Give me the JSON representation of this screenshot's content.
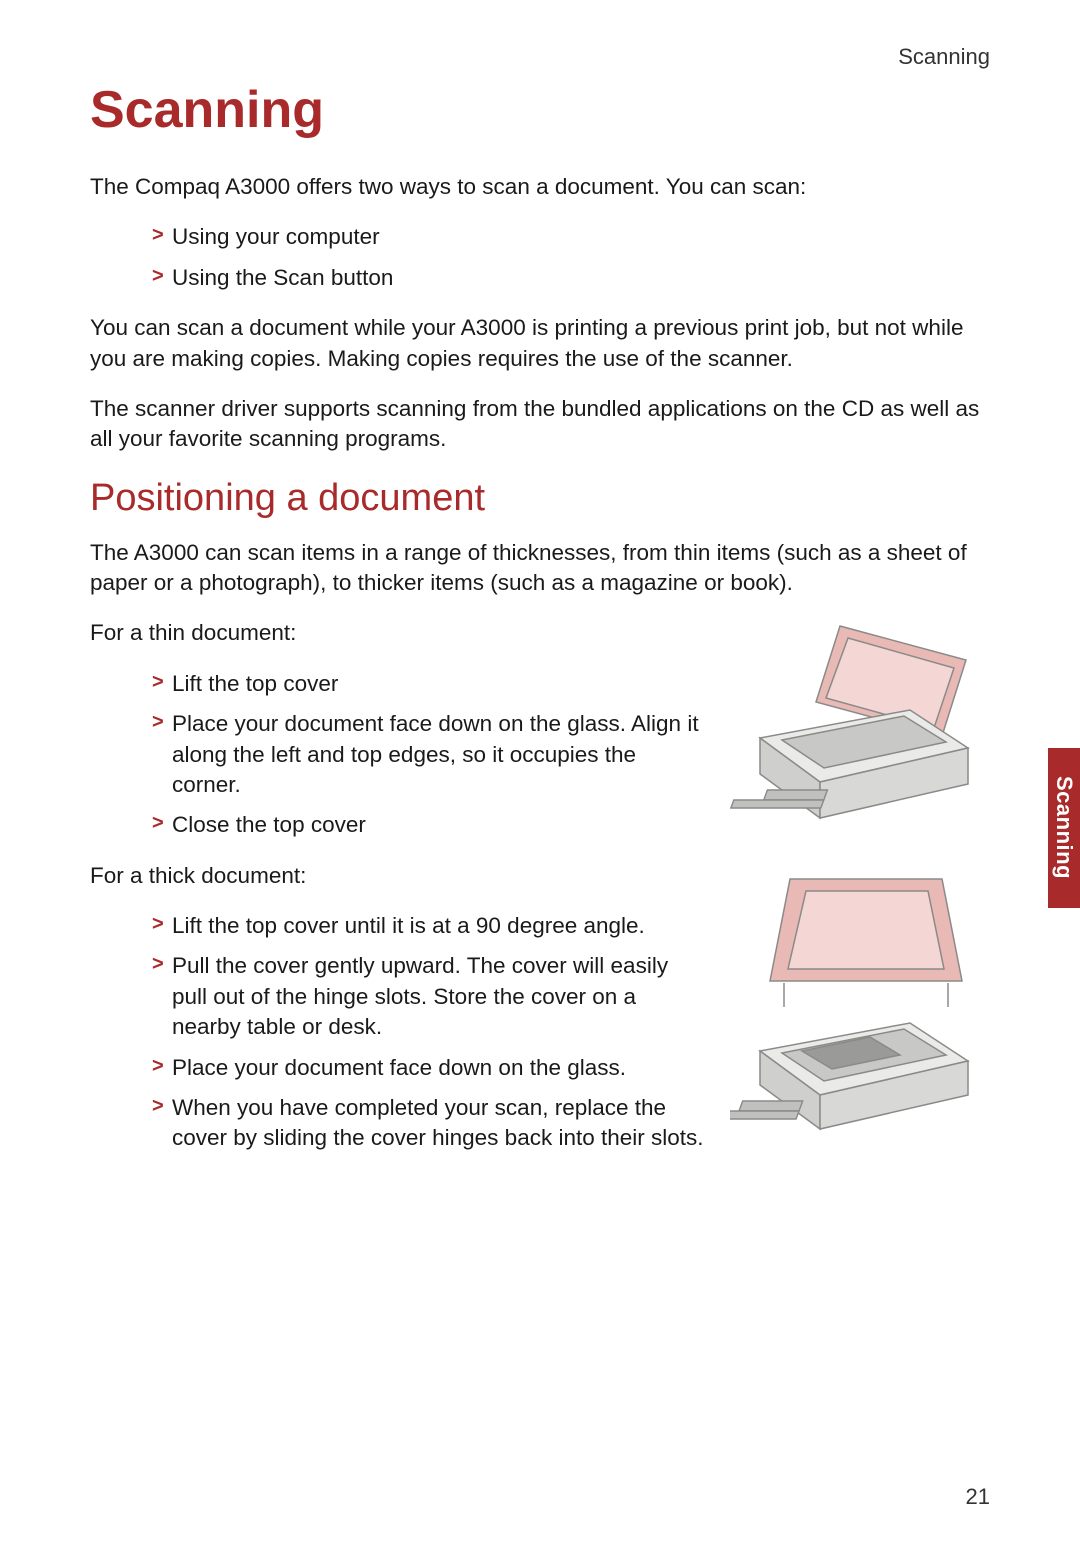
{
  "colors": {
    "accent": "#a82a2a",
    "text": "#1a1a1a",
    "bullet": "#a82a2a",
    "background": "#ffffff"
  },
  "header": {
    "label": "Scanning"
  },
  "title": "Scanning",
  "intro": "The Compaq A3000 offers two ways to scan a document. You can scan:",
  "intro_list": [
    "Using your computer",
    "Using the Scan button"
  ],
  "para2": "You can scan a document while your A3000 is printing a previous print job, but not while you are making copies. Making copies requires the use of the scanner.",
  "para3": "The scanner driver supports scanning from the bundled applications on the CD as well as all your favorite scanning programs.",
  "section2": {
    "heading": "Positioning a document",
    "intro": "The A3000 can scan items in a range of thicknesses, from thin items (such as a sheet of paper or a photograph), to thicker items (such as a magazine or book).",
    "thin_label": "For a thin document:",
    "thin_list": [
      "Lift the top cover",
      "Place your document face down on the glass. Align it along the left and top edges, so it occupies the corner.",
      "Close the top cover"
    ],
    "thick_label": "For a thick document:",
    "thick_list": [
      "Lift the top cover until it is at a 90 degree angle.",
      "Pull the cover gently upward. The cover will easily pull out of the hinge slots. Store the cover on a nearby table or desk.",
      "Place your document face down on the glass.",
      "When you have completed your scan, replace the cover by sliding the cover hinges back into their slots."
    ]
  },
  "side_tab": "Scanning",
  "page_number": "21",
  "figures": {
    "fig1": {
      "name": "scanner-lid-open-angled",
      "lid_fill": "#e8b9b5",
      "body_fill": "#d8d8d6",
      "stroke": "#8a8a88"
    },
    "fig2": {
      "name": "scanner-lid-removed",
      "lid_fill": "#e8b9b5",
      "body_fill": "#d8d8d6",
      "stroke": "#8a8a88"
    }
  }
}
